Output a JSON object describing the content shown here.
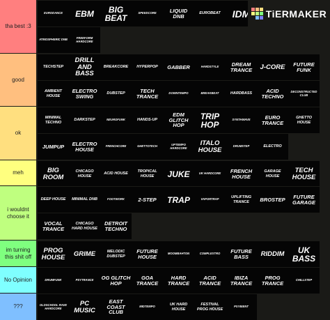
{
  "logo": {
    "text": "TiERMAKER",
    "cells": [
      "#ff7f7f",
      "#ffbf7f",
      "#ffdf7f",
      "#ffff7f",
      "#bfff7f",
      "#7fff7f",
      "#1a1a17",
      "#7fbfff",
      "#7f7fff"
    ]
  },
  "tiers": [
    {
      "label": "tha best :3",
      "color": "#ff7f7f",
      "items": [
        {
          "text": "EURODANCE",
          "size": 1
        },
        {
          "text": "EBM",
          "size": 5
        },
        {
          "text": "BIG BEAT",
          "size": 5
        },
        {
          "text": "SPEEDCORE",
          "size": 1
        },
        {
          "text": "LIQUID DnB",
          "size": 3
        },
        {
          "text": "EUROBEAT",
          "size": 2
        },
        {
          "text": "IDM",
          "size": 6
        },
        {
          "text": "HAPPY HARDCORE",
          "size": 1
        },
        {
          "text": "JUNGLE",
          "size": 2
        },
        {
          "text": "ATMOSPHERIC DnB",
          "size": 1
        },
        {
          "text": "FREEFORM HARDCORE",
          "size": 1
        }
      ]
    },
    {
      "label": "good",
      "color": "#ffbf7f",
      "items": [
        {
          "text": "TECHSTEP",
          "size": 2
        },
        {
          "text": "DRILL AND BASS",
          "size": 4
        },
        {
          "text": "BREAKCORE",
          "size": 2
        },
        {
          "text": "HYPERPOP",
          "size": 2
        },
        {
          "text": "GABBER",
          "size": 3
        },
        {
          "text": "HARDSTYLE",
          "size": 1
        },
        {
          "text": "DREAM TRANCE",
          "size": 3
        },
        {
          "text": "J-CORE",
          "size": 4
        },
        {
          "text": "FUTURE FUNK",
          "size": 3
        },
        {
          "text": "AMBIENT HOUSE",
          "size": 2
        },
        {
          "text": "ELECTRO SWING",
          "size": 3
        },
        {
          "text": "DUBSTEP",
          "size": 2
        },
        {
          "text": "TECH TRANCE",
          "size": 3
        },
        {
          "text": "DOWNTEMPO",
          "size": 1
        },
        {
          "text": "BREAKBEAT",
          "size": 1
        },
        {
          "text": "HARDBASS",
          "size": 2
        },
        {
          "text": "ACID TECHNO",
          "size": 3
        },
        {
          "text": "DECONSTRUCTED CLUB",
          "size": 1
        },
        {
          "text": "MICRO HOUSE",
          "size": 4
        },
        {
          "text": "AMBIENT TECHNO",
          "size": 2
        },
        {
          "text": "INDUSTRIAL TECHNO",
          "size": 1
        }
      ]
    },
    {
      "label": "ok",
      "color": "#ffdf7f",
      "items": [
        {
          "text": "MINIMAL TECHNO",
          "size": 2
        },
        {
          "text": "DARKSTEP",
          "size": 2
        },
        {
          "text": "NEUROFUNK",
          "size": 1
        },
        {
          "text": "HANDS-UP",
          "size": 2
        },
        {
          "text": "EDM GLITCH HOP",
          "size": 3
        },
        {
          "text": "TRIP HOP",
          "size": 5
        },
        {
          "text": "SYNTHWAVE",
          "size": 1
        },
        {
          "text": "EURO TRANCE",
          "size": 3
        },
        {
          "text": "GHETTO HOUSE",
          "size": 2
        },
        {
          "text": "JUMPUP",
          "size": 3
        },
        {
          "text": "ELECTRO HOUSE",
          "size": 3
        },
        {
          "text": "FRENCHCORE",
          "size": 1
        },
        {
          "text": "GHETTOTECH",
          "size": 1
        },
        {
          "text": "UPTEMPO HARDCORE",
          "size": 1
        },
        {
          "text": "ITALO HOUSE",
          "size": 4
        },
        {
          "text": "DRUMSTEP",
          "size": 1
        },
        {
          "text": "ELECTRO",
          "size": 2
        }
      ]
    },
    {
      "label": "meh",
      "color": "#ffff7f",
      "items": [
        {
          "text": "BIG ROOM",
          "size": 4
        },
        {
          "text": "CHICAGO HOUSE",
          "size": 2
        },
        {
          "text": "ACID HOUSE",
          "size": 2
        },
        {
          "text": "TROPICAL HOUSE",
          "size": 2
        },
        {
          "text": "JUKE",
          "size": 5
        },
        {
          "text": "UK HARDCORE",
          "size": 1
        },
        {
          "text": "FRENCH HOUSE",
          "size": 3
        },
        {
          "text": "GARAGE HOUSE",
          "size": 2
        },
        {
          "text": "TECH HOUSE",
          "size": 4
        }
      ]
    },
    {
      "label": "i wouldnt choose it",
      "color": "#bfff7f",
      "items": [
        {
          "text": "DEEP HOUSE",
          "size": 2
        },
        {
          "text": "MINIMAL DnB",
          "size": 2
        },
        {
          "text": "FOOTWORK",
          "size": 1
        },
        {
          "text": "2-STEP",
          "size": 3
        },
        {
          "text": "TRAP",
          "size": 5
        },
        {
          "text": "VAPORTRAP",
          "size": 1
        },
        {
          "text": "UPLIFTING TRANCE",
          "size": 2
        },
        {
          "text": "BROSTEP",
          "size": 3
        },
        {
          "text": "FUTURE GARAGE",
          "size": 3
        },
        {
          "text": "VOCAL TRANCE",
          "size": 3
        },
        {
          "text": "CHICAGO HARD HOUSE",
          "size": 2
        },
        {
          "text": "DETROIT TECHNO",
          "size": 3
        }
      ]
    },
    {
      "label": "im turning this shit off",
      "color": "#7fff7f",
      "items": [
        {
          "text": "PROG HOUSE",
          "size": 4
        },
        {
          "text": "GRIME",
          "size": 4
        },
        {
          "text": "MELODIC DUBSTEP",
          "size": 2
        },
        {
          "text": "FUTURE HOUSE",
          "size": 3
        },
        {
          "text": "MOOMBAHTON",
          "size": 1
        },
        {
          "text": "COMPLEXTRO",
          "size": 1
        },
        {
          "text": "FUTURE BASS",
          "size": 3
        },
        {
          "text": "RIDDIM",
          "size": 4
        },
        {
          "text": "UK BASS",
          "size": 5
        },
        {
          "text": "UK GARAGE",
          "size": 3
        }
      ]
    },
    {
      "label": "No Opinion",
      "color": "#7fffff",
      "items": [
        {
          "text": "DRUMFUNK",
          "size": 1
        },
        {
          "text": "PSYTRANCE",
          "size": 1
        },
        {
          "text": "OG GLITCH HOP",
          "size": 3
        },
        {
          "text": "GOA TRANCE",
          "size": 3
        },
        {
          "text": "HARD TRANCE",
          "size": 3
        },
        {
          "text": "ACID TRANCE",
          "size": 3
        },
        {
          "text": "IBIZA TRANCE",
          "size": 3
        },
        {
          "text": "PROG TRANCE",
          "size": 3
        },
        {
          "text": "CHILLSTEP",
          "size": 1
        }
      ]
    },
    {
      "label": "???",
      "color": "#7fbfff",
      "items": [
        {
          "text": "OLDSCHOOL RAVE HARDCORE",
          "size": 1
        },
        {
          "text": "PC MUSIC",
          "size": 4
        },
        {
          "text": "EAST COAST CLUB",
          "size": 3
        },
        {
          "text": "MIDTEMPO",
          "size": 1
        },
        {
          "text": "UK HARD HOUSE",
          "size": 2
        },
        {
          "text": "FESTIVAL PROG HOUSE",
          "size": 2
        },
        {
          "text": "PSYBIENT",
          "size": 1
        }
      ]
    }
  ]
}
